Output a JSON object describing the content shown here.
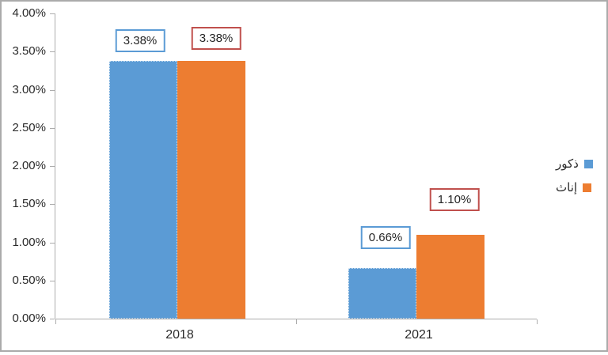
{
  "chart_data": {
    "type": "bar",
    "title": "",
    "categories": [
      "2018",
      "2021"
    ],
    "series": [
      {
        "name": "ذكور",
        "color": "#5B9BD5",
        "label_border_color": "#5B9BD5",
        "values": [
          3.38,
          0.66
        ],
        "data_labels": [
          "3.38%",
          "0.66%"
        ]
      },
      {
        "name": "إناث",
        "color": "#ED7D31",
        "label_border_color": "#C0504D",
        "values": [
          3.38,
          1.1
        ],
        "data_labels": [
          "3.38%",
          "1.10%"
        ]
      }
    ],
    "y_axis": {
      "min": 0,
      "max": 4,
      "step": 0.5,
      "tick_labels": [
        "0.00%",
        "0.50%",
        "1.00%",
        "1.50%",
        "2.00%",
        "2.50%",
        "3.00%",
        "3.50%",
        "4.00%"
      ]
    },
    "legend": {
      "position": "right"
    },
    "grid": false
  }
}
